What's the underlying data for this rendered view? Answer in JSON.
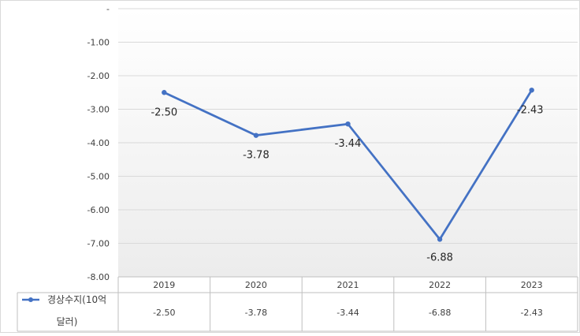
{
  "chart_data": {
    "type": "line",
    "categories": [
      "2019",
      "2020",
      "2021",
      "2022",
      "2023"
    ],
    "series": [
      {
        "name": "경상수지(10억 달러)",
        "name_lines": [
          "경상수지(10억",
          "달러)"
        ],
        "values": [
          -2.5,
          -3.78,
          -3.44,
          -6.88,
          -2.43
        ],
        "color": "#4472C4"
      }
    ],
    "data_labels": [
      "-2.50",
      "-3.78",
      "-3.44",
      "-6.88",
      "-2.43"
    ],
    "table_values": [
      "-2.50",
      "-3.78",
      "-3.44",
      "-6.88",
      "-2.43"
    ],
    "ylim": [
      -8,
      0
    ],
    "yticks": [
      {
        "value": 0,
        "label": "-"
      },
      {
        "value": -1,
        "label": "-1.00"
      },
      {
        "value": -2,
        "label": "-2.00"
      },
      {
        "value": -3,
        "label": "-3.00"
      },
      {
        "value": -4,
        "label": "-4.00"
      },
      {
        "value": -5,
        "label": "-5.00"
      },
      {
        "value": -6,
        "label": "-6.00"
      },
      {
        "value": -7,
        "label": "-7.00"
      },
      {
        "value": -8,
        "label": "-8.00"
      }
    ],
    "grid": true,
    "legend": "data-table-left"
  }
}
